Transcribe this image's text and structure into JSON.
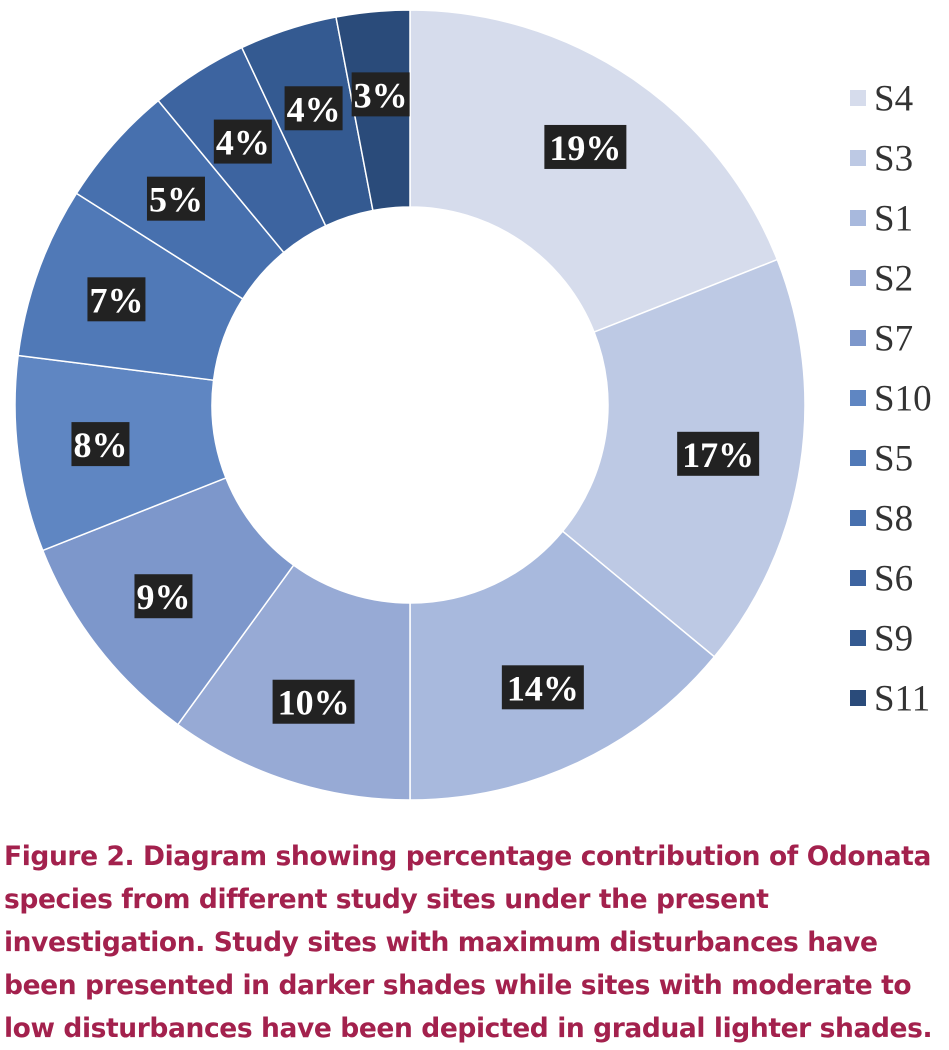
{
  "chart_data": {
    "type": "pie",
    "variant": "donut",
    "start": "top, clockwise",
    "categories": [
      "S4",
      "S3",
      "S1",
      "S2",
      "S7",
      "S10",
      "S5",
      "S8",
      "S6",
      "S9",
      "S11"
    ],
    "values": [
      19,
      17,
      14,
      10,
      9,
      8,
      7,
      5,
      4,
      4,
      3
    ],
    "data_labels": [
      "19%",
      "17%",
      "14%",
      "10%",
      "9%",
      "8%",
      "7%",
      "5%",
      "4%",
      "4%",
      "3%"
    ],
    "unit": "%",
    "colors": [
      "#d6dcec",
      "#bdc9e4",
      "#a8b9dd",
      "#97aad5",
      "#7d97cb",
      "#5f86c2",
      "#5079b7",
      "#4770ae",
      "#3d64a0",
      "#345a91",
      "#2a4b7a"
    ],
    "legend": {
      "placement": "right",
      "entries": [
        "S4",
        "S3",
        "S1",
        "S2",
        "S7",
        "S10",
        "S5",
        "S8",
        "S6",
        "S9",
        "S11"
      ]
    }
  },
  "caption": "Figure 2. Diagram showing percentage contribution of Odonata species from different study sites under the present investigation. Study sites with maximum disturbances have been presented in darker shades while sites with moderate to low disturbances have been depicted in gradual lighter shades."
}
